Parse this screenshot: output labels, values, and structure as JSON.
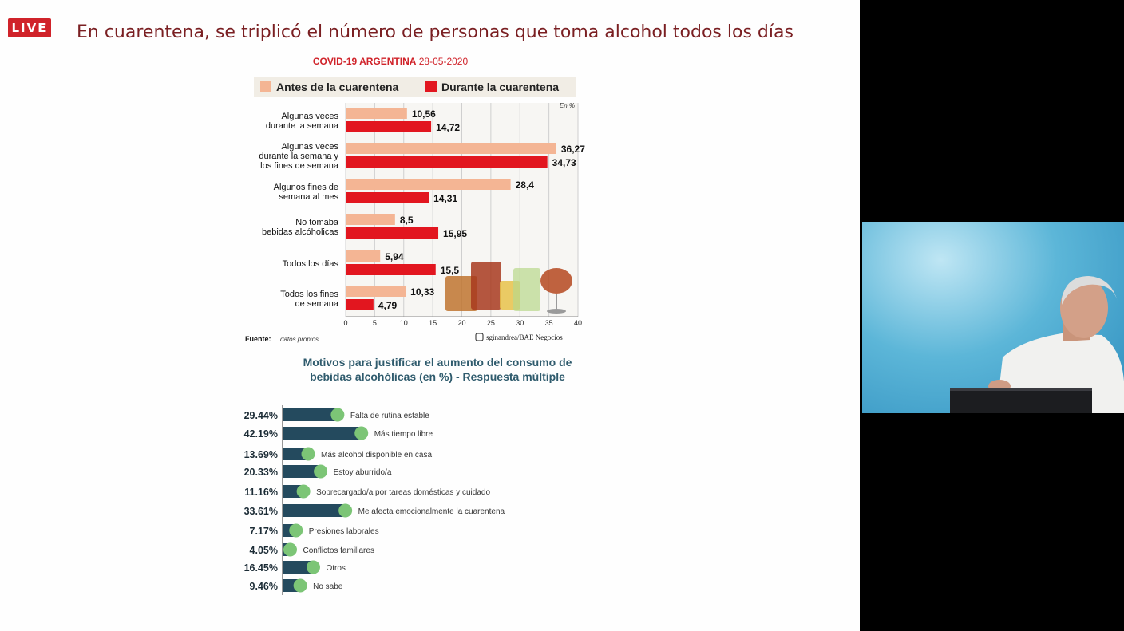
{
  "stream": {
    "live_badge": "LIVE"
  },
  "slide": {
    "title": "En cuarentena, se triplicó el número de personas que toma alcohol todos los días"
  },
  "chart_data": [
    {
      "type": "bar",
      "orientation": "horizontal",
      "header_label": "COVID-19 ARGENTINA",
      "header_date": "28-05-2020",
      "unit_note": "En %",
      "categories": [
        [
          "Algunas veces",
          "durante la semana"
        ],
        [
          "Algunas veces",
          "durante la semana y",
          "los fines de semana"
        ],
        [
          "Algunos fines de",
          "semana al mes"
        ],
        [
          "No tomaba",
          "bebidas alcóholicas"
        ],
        [
          "Todos los días"
        ],
        [
          "Todos los fines",
          "de semana"
        ]
      ],
      "series": [
        {
          "name": "Antes de la cuarentena",
          "color": "#f4b594",
          "values": [
            10.56,
            36.27,
            28.4,
            8.5,
            5.94,
            10.33
          ],
          "labels": [
            "10,56",
            "36,27",
            "28,4",
            "8,5",
            "5,94",
            "10,33"
          ]
        },
        {
          "name": "Durante la cuarentena",
          "color": "#e2161f",
          "values": [
            14.72,
            34.73,
            14.31,
            15.95,
            15.5,
            4.79
          ],
          "labels": [
            "14,72",
            "34,73",
            "14,31",
            "15,95",
            "15,5",
            "4,79"
          ]
        }
      ],
      "xlim": [
        0,
        40
      ],
      "xticks": [
        0,
        5,
        10,
        15,
        20,
        25,
        30,
        35,
        40
      ],
      "grid": true,
      "legend": "top",
      "source_label": "Fuente:",
      "source_text": "datos propios",
      "credit": "sginandrea/BAE Negocios"
    },
    {
      "type": "bar",
      "orientation": "horizontal",
      "title_lines": [
        "Motivos para justificar el aumento del consumo de",
        "bebidas alcohólicas (en %) - Respuesta múltiple"
      ],
      "color": "#244a5e",
      "marker_color": "#7cc576",
      "categories": [
        "Falta de rutina estable",
        "Más tiempo libre",
        "Más alcohol disponible en casa",
        "Estoy aburrido/a",
        "Sobrecargado/a por tareas domésticas y cuidado",
        "Me afecta emocionalmente la cuarentena",
        "Presiones laborales",
        "Conflictos familiares",
        "Otros",
        "No sabe"
      ],
      "values": [
        29.44,
        42.19,
        13.69,
        20.33,
        11.16,
        33.61,
        7.17,
        4.05,
        16.45,
        9.46
      ],
      "labels": [
        "29.44%",
        "42.19%",
        "13.69%",
        "20.33%",
        "11.16%",
        "33.61%",
        "7.17%",
        "4.05%",
        "16.45%",
        "9.46%"
      ]
    }
  ]
}
